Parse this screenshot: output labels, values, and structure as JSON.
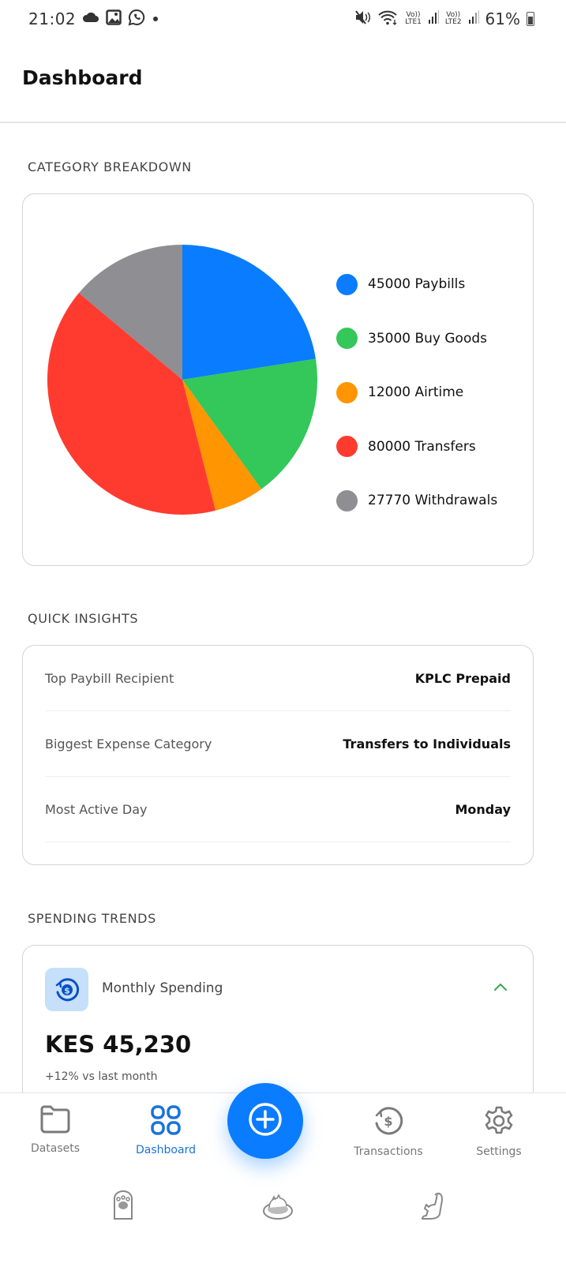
{
  "status_bar": {
    "time": "21:02",
    "left_icons": [
      "cloud-icon",
      "gallery-icon",
      "whatsapp-icon",
      "dot-icon"
    ],
    "right_icons": [
      "mute-icon",
      "wifi-icon",
      "lte1-signal-icon",
      "lte2-signal-icon"
    ],
    "sim1_label": "Vo)) LTE1",
    "sim2_label": "Vo)) LTE2",
    "battery_percent": "61%"
  },
  "header": {
    "title": "Dashboard"
  },
  "category_breakdown": {
    "section_label": "CATEGORY BREAKDOWN",
    "legend": [
      {
        "label": "45000 Paybills",
        "color": "#0a7cff"
      },
      {
        "label": "35000 Buy Goods",
        "color": "#34c759"
      },
      {
        "label": "12000 Airtime",
        "color": "#ff9500"
      },
      {
        "label": "80000 Transfers",
        "color": "#ff3b30"
      },
      {
        "label": "27770 Withdrawals",
        "color": "#8e8e93"
      }
    ]
  },
  "chart_data": {
    "type": "pie",
    "title": "Category Breakdown",
    "categories": [
      "Paybills",
      "Buy Goods",
      "Airtime",
      "Transfers",
      "Withdrawals"
    ],
    "values": [
      45000,
      35000,
      12000,
      80000,
      27770
    ],
    "colors": [
      "#0a7cff",
      "#34c759",
      "#ff9500",
      "#ff3b30",
      "#8e8e93"
    ],
    "start_angle_deg": 0,
    "direction": "clockwise",
    "legend_position": "right"
  },
  "quick_insights": {
    "section_label": "QUICK INSIGHTS",
    "rows": [
      {
        "label": "Top Paybill Recipient",
        "value": "KPLC Prepaid"
      },
      {
        "label": "Biggest Expense Category",
        "value": "Transfers to Individuals"
      },
      {
        "label": "Most Active Day",
        "value": "Monday"
      }
    ]
  },
  "spending_trends": {
    "section_label": "SPENDING TRENDS",
    "card": {
      "icon": "dollar-cycle-icon",
      "title": "Monthly Spending",
      "amount": "KES 45,230",
      "delta": "+12% vs last month",
      "expanded": true
    }
  },
  "bottom_nav": {
    "items": [
      {
        "label": "Datasets",
        "icon": "folder-icon",
        "active": false
      },
      {
        "label": "Dashboard",
        "icon": "grid-icon",
        "active": true
      },
      {
        "label": "Transactions",
        "icon": "dollar-cycle-icon",
        "active": false
      },
      {
        "label": "Settings",
        "icon": "gear-icon",
        "active": false
      }
    ],
    "fab_icon": "plus-circle-icon"
  },
  "system_nav": {
    "buttons": [
      "recents-paw-icon",
      "home-cat-icon",
      "back-cat-icon"
    ]
  },
  "colors": {
    "accent": "#0a7cff",
    "active_nav": "#1a73d9",
    "chevron": "#34a853"
  }
}
